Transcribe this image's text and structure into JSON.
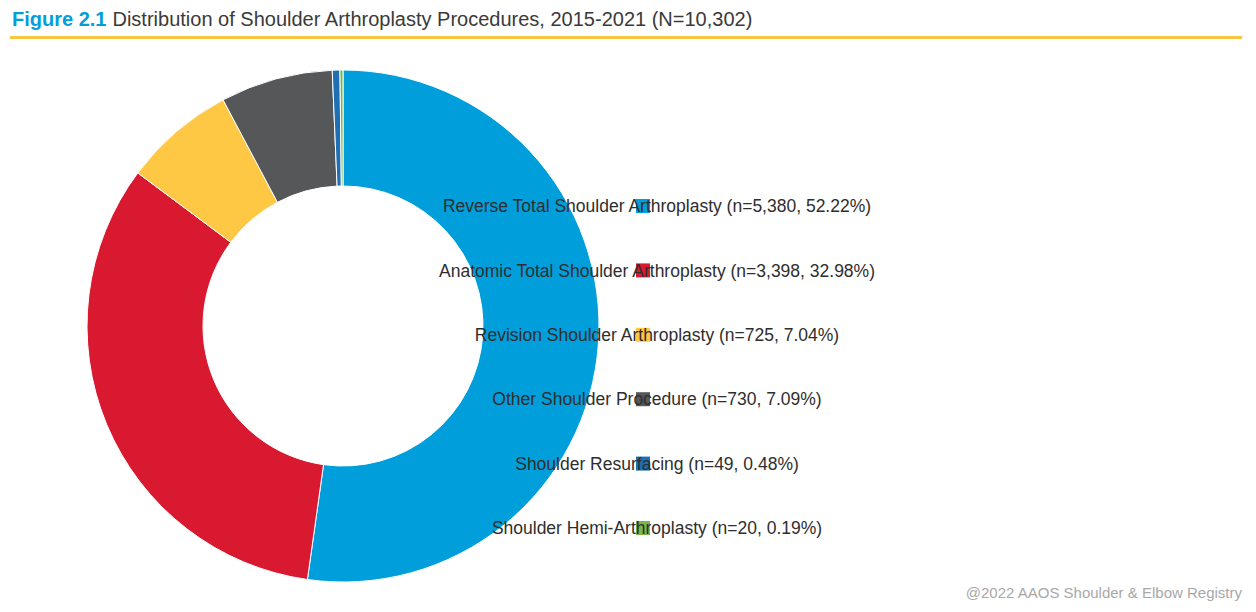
{
  "chart_data": {
    "type": "donut",
    "title_label": "Figure 2.1",
    "title": "Distribution of Shoulder Arthroplasty Procedures, 2015-2021 (N=10,302)",
    "categories": [
      "Reverse Total Shoulder Arthroplasty (n=5,380, 52.22%)",
      "Anatomic Total Shoulder Arthroplasty (n=3,398, 32.98%)",
      "Revision Shoulder Arthroplasty (n=725, 7.04%)",
      "Other Shoulder Procedure (n=730, 7.09%)",
      "Shoulder Resurfacing (n=49, 0.48%)",
      "Shoulder Hemi-Arthroplasty (n=20, 0.19%)"
    ],
    "values": [
      52.22,
      32.98,
      7.04,
      7.09,
      0.48,
      0.19
    ],
    "colors": [
      "#009fdb",
      "#d9192f",
      "#ffc844",
      "#555759",
      "#1f6fb4",
      "#7ab648"
    ],
    "legend": "right",
    "caption": "@2022 AAOS Shoulder & Elbow Registry"
  }
}
